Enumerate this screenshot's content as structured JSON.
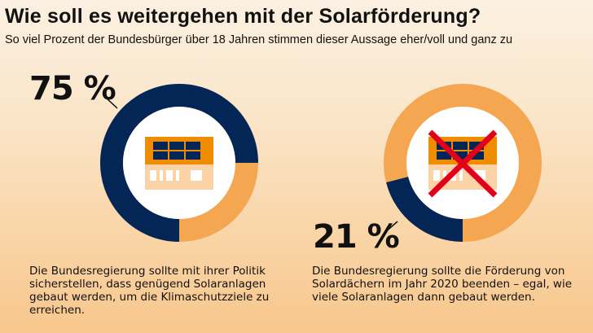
{
  "title": "Wie soll es weitergehen mit der Solarförderung?",
  "subtitle": "So viel Prozent der Bundesbürger über 18 Jahren stimmen dieser Aussage eher/voll und ganz zu",
  "colors": {
    "agree": "#032656",
    "rest": "#f5a650",
    "roof": "#f08c00",
    "wall": "#fbd3a6",
    "cross": "#e3001b"
  },
  "chart_data": [
    {
      "type": "pie",
      "variant": "donut",
      "value": 75,
      "label": "75 %",
      "statement": "Die Bundesregierung sollte mit ihrer Politik sicherstellen, dass genügend Solaranlagen gebaut werden, um die Klimaschutzziele zu erreichen.",
      "icon": "house-with-solar-panels"
    },
    {
      "type": "pie",
      "variant": "donut",
      "value": 21,
      "label": "21 %",
      "statement": "Die Bundesregierung sollte die Förderung von Solardächern im Jahr 2020 beenden – egal, wie viele Solaranlagen dann gebaut werden.",
      "icon": "house-with-solar-panels-crossed-out"
    }
  ]
}
